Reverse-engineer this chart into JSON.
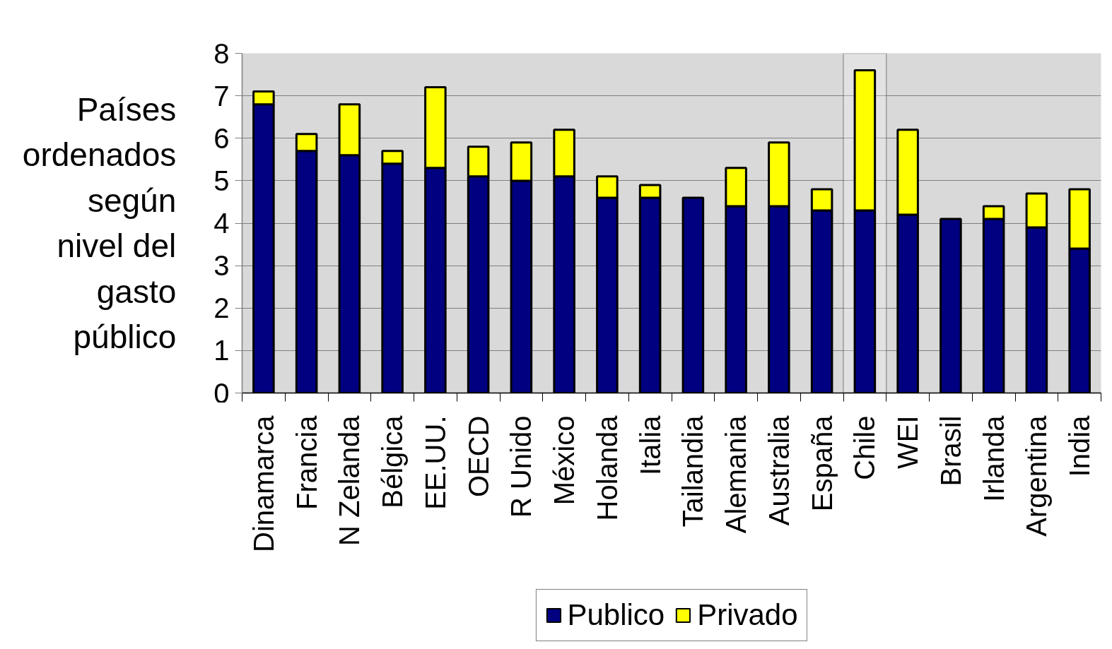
{
  "chart_data": {
    "type": "bar",
    "stacked": true,
    "ylabel": "Países ordenados según nivel del gasto público",
    "categories": [
      "Dinamarca",
      "Francia",
      "N Zelanda",
      "Bélgica",
      "EE.UU.",
      "OECD",
      "R Unido",
      "México",
      "Holanda",
      "Italia",
      "Tailandia",
      "Alemania",
      "Australia",
      "España",
      "Chile",
      "WEI",
      "Brasil",
      "Irlanda",
      "Argentina",
      "India"
    ],
    "series": [
      {
        "name": "Publico",
        "color": "#000080",
        "values": [
          6.8,
          5.7,
          5.6,
          5.4,
          5.3,
          5.1,
          5.0,
          5.1,
          4.6,
          4.6,
          4.6,
          4.4,
          4.4,
          4.3,
          4.3,
          4.2,
          4.1,
          4.1,
          3.9,
          3.4
        ]
      },
      {
        "name": "Privado",
        "color": "#ffff00",
        "values": [
          0.3,
          0.4,
          1.2,
          0.3,
          1.9,
          0.7,
          0.9,
          1.1,
          0.5,
          0.3,
          null,
          0.9,
          1.5,
          0.5,
          3.3,
          2.0,
          null,
          0.3,
          0.8,
          1.4
        ]
      }
    ],
    "ylim": [
      0,
      8
    ],
    "yticks": [
      0,
      1,
      2,
      3,
      4,
      5,
      6,
      7,
      8
    ],
    "grid": "y",
    "legend": "bottom",
    "bands": [
      {
        "axis": "x",
        "from": "Chile",
        "to": "Chile"
      }
    ]
  }
}
